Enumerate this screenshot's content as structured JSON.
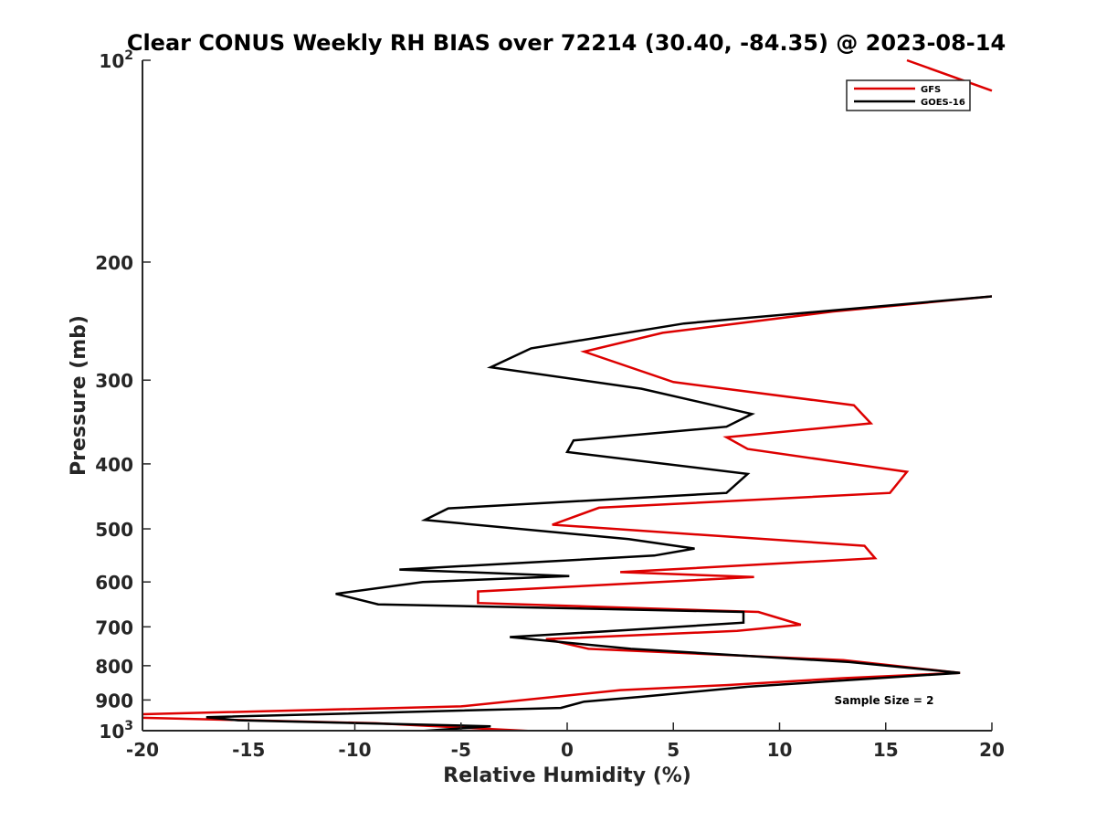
{
  "chart_data": {
    "type": "line",
    "title": "Clear CONUS Weekly RH BIAS over 72214 (30.40, -84.35) @ 2023-08-14",
    "xlabel": "Relative Humidity (%)",
    "ylabel": "Pressure (mb)",
    "xlim": [
      -20,
      20
    ],
    "ylim": [
      1000,
      100
    ],
    "yscale": "log",
    "x_ticks": [
      "-20",
      "-15",
      "-10",
      "-5",
      "0",
      "5",
      "10",
      "15",
      "20"
    ],
    "y_ticks": [
      {
        "value": 100,
        "base": "10",
        "exp": "2"
      },
      {
        "value": 200,
        "label": "200"
      },
      {
        "value": 300,
        "label": "300"
      },
      {
        "value": 400,
        "label": "400"
      },
      {
        "value": 500,
        "label": "500"
      },
      {
        "value": 600,
        "label": "600"
      },
      {
        "value": 700,
        "label": "700"
      },
      {
        "value": 800,
        "label": "800"
      },
      {
        "value": 900,
        "label": "900"
      },
      {
        "value": 1000,
        "base": "10",
        "exp": "3"
      }
    ],
    "legend_position": "top-right",
    "annotation": "Sample Size = 2",
    "series": [
      {
        "name": "GFS",
        "color": "#dd0000",
        "points": [
          [
            -1.2,
            1003
          ],
          [
            -9,
            975
          ],
          [
            -21,
            955
          ],
          [
            -20,
            945
          ],
          [
            -5,
            920
          ],
          [
            2.5,
            870
          ],
          [
            7.5,
            855
          ],
          [
            13,
            835
          ],
          [
            18.5,
            820
          ],
          [
            13,
            785
          ],
          [
            1,
            755
          ],
          [
            -1,
            730
          ],
          [
            8,
            710
          ],
          [
            11,
            695
          ],
          [
            9,
            665
          ],
          [
            -4.2,
            645
          ],
          [
            -4.2,
            620
          ],
          [
            8.8,
            590
          ],
          [
            2.5,
            580
          ],
          [
            14.5,
            553
          ],
          [
            14,
            530
          ],
          [
            -0.7,
            493
          ],
          [
            1.5,
            465
          ],
          [
            15.2,
            442
          ],
          [
            16,
            411
          ],
          [
            8.5,
            380
          ],
          [
            7.5,
            365
          ],
          [
            14.3,
            348
          ],
          [
            13.5,
            327
          ],
          [
            5,
            302
          ],
          [
            0.8,
            272
          ],
          [
            4.5,
            255
          ],
          [
            12.5,
            237
          ],
          [
            20,
            225
          ]
        ]
      },
      {
        "name": "GOES-16",
        "color": "#000000",
        "points": [
          [
            -7.2,
            1003
          ],
          [
            -3.6,
            985
          ],
          [
            -15.5,
            965
          ],
          [
            -17,
            955
          ],
          [
            -0.3,
            925
          ],
          [
            0.8,
            905
          ],
          [
            3.5,
            890
          ],
          [
            8.5,
            860
          ],
          [
            18.5,
            820
          ],
          [
            13.3,
            790
          ],
          [
            3,
            755
          ],
          [
            -2.7,
            725
          ],
          [
            2.8,
            708
          ],
          [
            8.3,
            690
          ],
          [
            8.3,
            665
          ],
          [
            -8.9,
            648
          ],
          [
            -10.9,
            625
          ],
          [
            -6.8,
            600
          ],
          [
            0.1,
            588
          ],
          [
            -7.9,
            575
          ],
          [
            4.1,
            548
          ],
          [
            6,
            535
          ],
          [
            2.9,
            518
          ],
          [
            -6.7,
            485
          ],
          [
            -5.6,
            466
          ],
          [
            7.5,
            442
          ],
          [
            8.5,
            414
          ],
          [
            0,
            384
          ],
          [
            0.3,
            369
          ],
          [
            7.5,
            352
          ],
          [
            8.7,
            337
          ],
          [
            3.5,
            309
          ],
          [
            -3.6,
            287
          ],
          [
            -1.7,
            269
          ],
          [
            5.5,
            247
          ],
          [
            20,
            225
          ]
        ]
      }
    ],
    "extra_segment": {
      "color": "#dd0000",
      "points": [
        [
          16,
          100
        ],
        [
          20,
          111
        ]
      ]
    }
  }
}
